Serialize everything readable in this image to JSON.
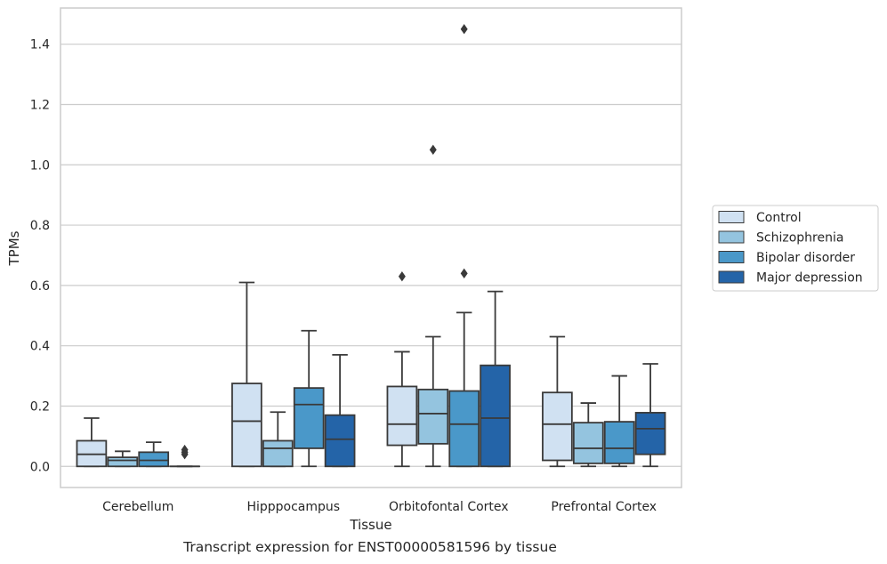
{
  "caption": "Transcript expression for ENST00000581596 by tissue",
  "chart_data": {
    "type": "box",
    "xlabel": "Tissue",
    "ylabel": "TPMs",
    "ylim": [
      -0.07,
      1.52
    ],
    "yticks": [
      0.0,
      0.2,
      0.4,
      0.6,
      0.8,
      1.0,
      1.2,
      1.4
    ],
    "ytick_labels": [
      "0.0",
      "0.2",
      "0.4",
      "0.6",
      "0.8",
      "1.0",
      "1.2",
      "1.4"
    ],
    "grid": "horizontal",
    "legend_placement": "right",
    "categories": [
      "Cerebellum",
      "Hipppocampus",
      "Orbitofontal Cortex",
      "Prefrontal Cortex"
    ],
    "series": [
      {
        "name": "Control",
        "color": "#d0e1f2",
        "boxes": [
          {
            "whislo": 0.0,
            "q1": 0.0,
            "med": 0.04,
            "q3": 0.085,
            "whishi": 0.16,
            "fliers": []
          },
          {
            "whislo": 0.0,
            "q1": 0.0,
            "med": 0.15,
            "q3": 0.275,
            "whishi": 0.61,
            "fliers": []
          },
          {
            "whislo": 0.0,
            "q1": 0.07,
            "med": 0.14,
            "q3": 0.265,
            "whishi": 0.38,
            "fliers": [
              0.63
            ]
          },
          {
            "whislo": 0.0,
            "q1": 0.02,
            "med": 0.14,
            "q3": 0.245,
            "whishi": 0.43,
            "fliers": []
          }
        ]
      },
      {
        "name": "Schizophrenia",
        "color": "#94c4df",
        "boxes": [
          {
            "whislo": 0.0,
            "q1": 0.0,
            "med": 0.02,
            "q3": 0.03,
            "whishi": 0.05,
            "fliers": []
          },
          {
            "whislo": 0.0,
            "q1": 0.0,
            "med": 0.06,
            "q3": 0.085,
            "whishi": 0.18,
            "fliers": []
          },
          {
            "whislo": 0.0,
            "q1": 0.075,
            "med": 0.175,
            "q3": 0.255,
            "whishi": 0.43,
            "fliers": [
              1.05
            ]
          },
          {
            "whislo": 0.0,
            "q1": 0.01,
            "med": 0.06,
            "q3": 0.145,
            "whishi": 0.21,
            "fliers": []
          }
        ]
      },
      {
        "name": "Bipolar disorder",
        "color": "#4a98c9",
        "boxes": [
          {
            "whislo": 0.0,
            "q1": 0.0,
            "med": 0.02,
            "q3": 0.047,
            "whishi": 0.08,
            "fliers": []
          },
          {
            "whislo": 0.0,
            "q1": 0.06,
            "med": 0.205,
            "q3": 0.26,
            "whishi": 0.45,
            "fliers": []
          },
          {
            "whislo": 0.0,
            "q1": 0.0,
            "med": 0.14,
            "q3": 0.25,
            "whishi": 0.51,
            "fliers": [
              0.64,
              1.45
            ]
          },
          {
            "whislo": 0.0,
            "q1": 0.01,
            "med": 0.06,
            "q3": 0.148,
            "whishi": 0.3,
            "fliers": []
          }
        ]
      },
      {
        "name": "Major depression",
        "color": "#2464a8",
        "boxes": [
          {
            "whislo": 0.0,
            "q1": 0.0,
            "med": 0.0,
            "q3": 0.0,
            "whishi": 0.0,
            "fliers": [
              0.04,
              0.047,
              0.055
            ]
          },
          {
            "whislo": 0.0,
            "q1": 0.0,
            "med": 0.09,
            "q3": 0.17,
            "whishi": 0.37,
            "fliers": []
          },
          {
            "whislo": 0.0,
            "q1": 0.0,
            "med": 0.16,
            "q3": 0.335,
            "whishi": 0.58,
            "fliers": []
          },
          {
            "whislo": 0.0,
            "q1": 0.04,
            "med": 0.125,
            "q3": 0.178,
            "whishi": 0.34,
            "fliers": []
          }
        ]
      }
    ]
  }
}
